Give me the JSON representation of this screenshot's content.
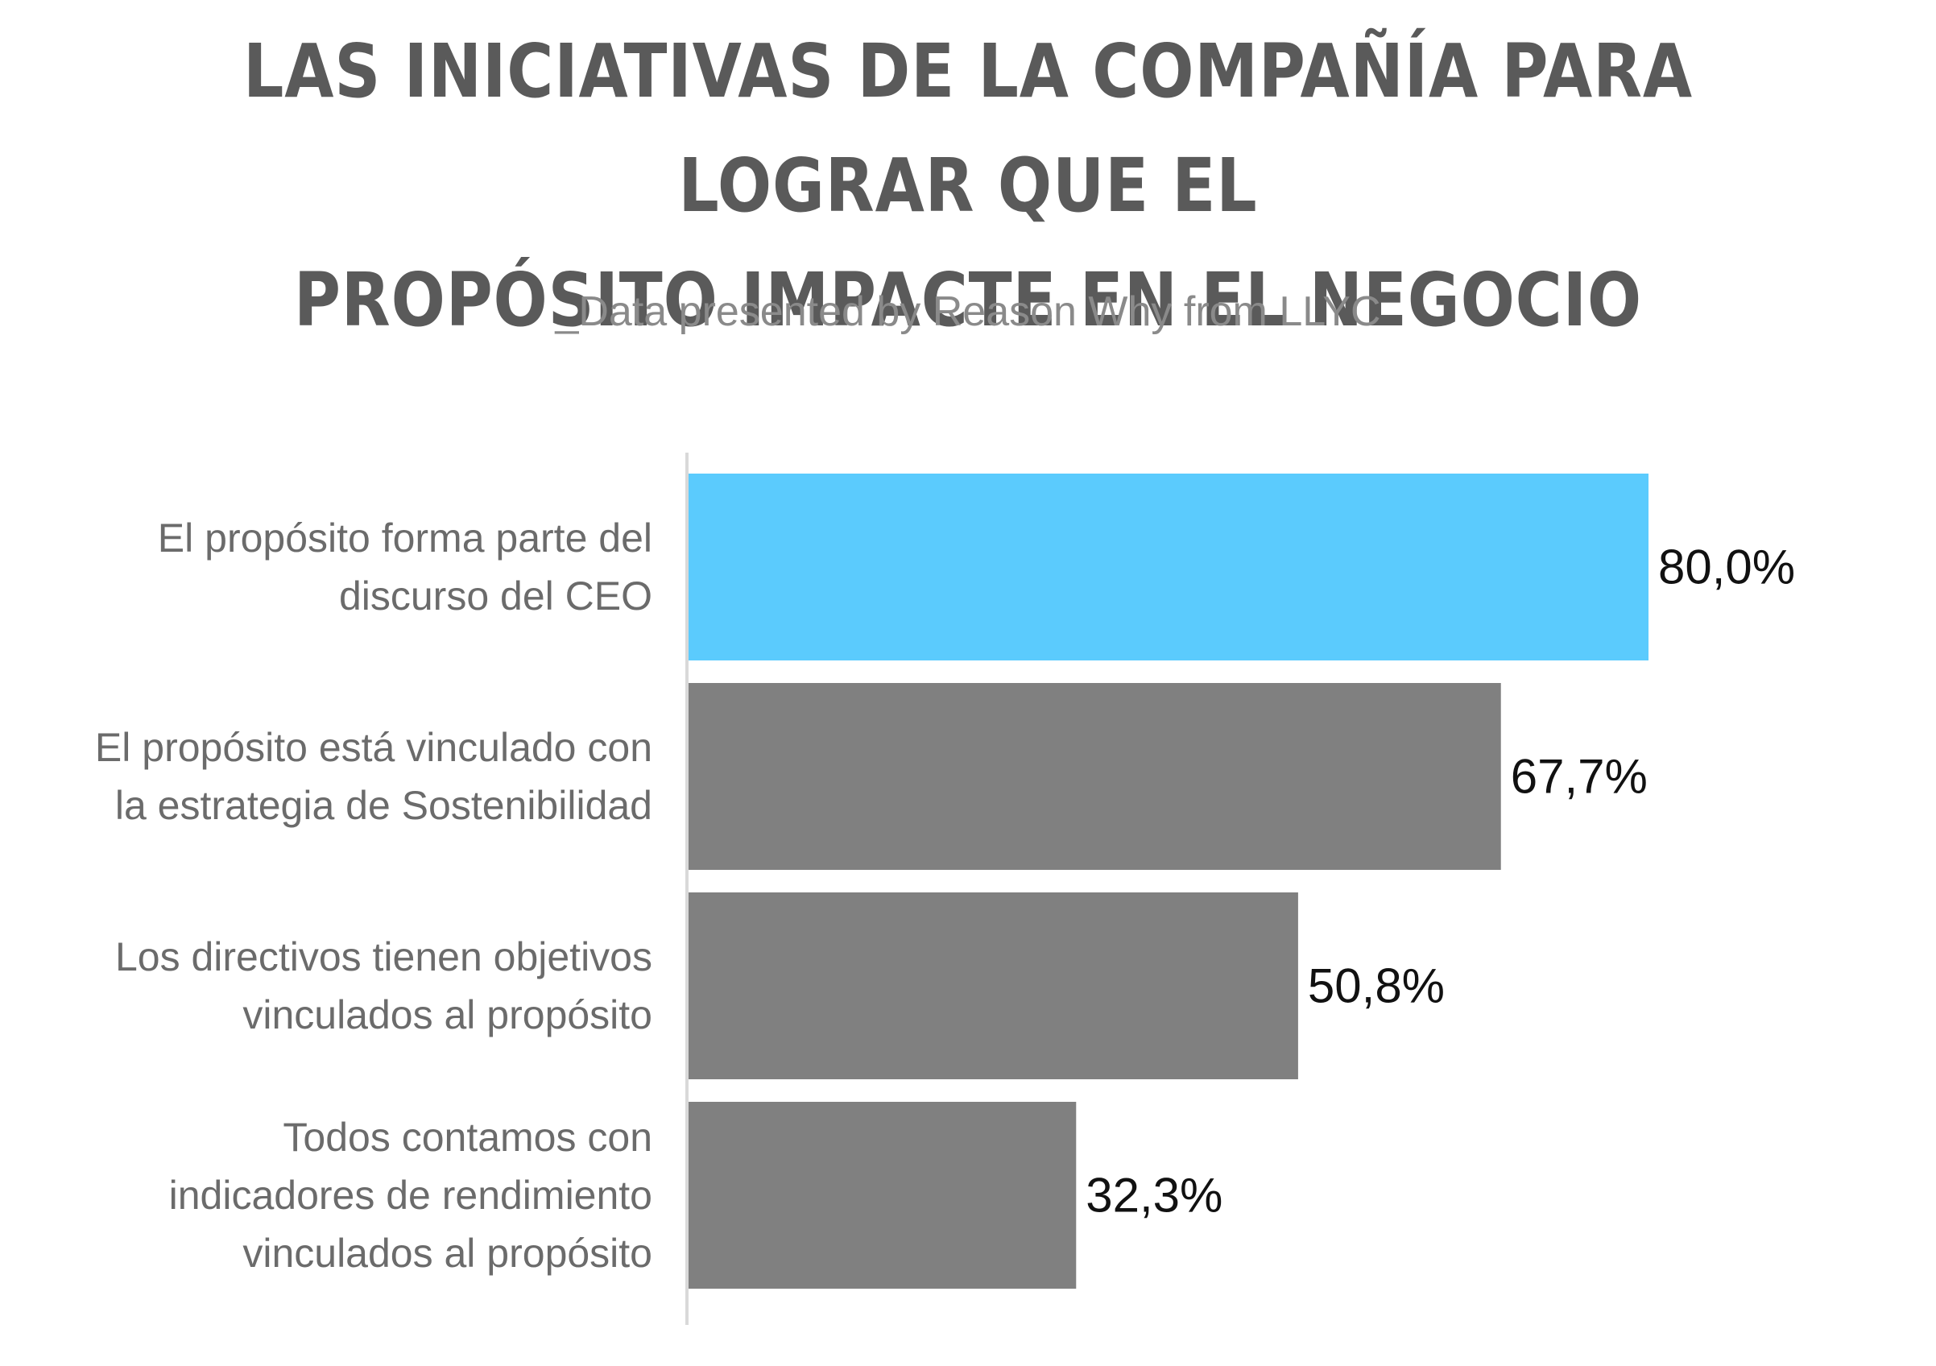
{
  "title_lines": [
    "LAS INICIATIVAS DE LA COMPAÑÍA PARA LOGRAR QUE EL",
    "PROPÓSITO IMPACTE EN EL NEGOCIO"
  ],
  "subtitle": "_Data presented by Reason Why from LLYC",
  "chart_data": {
    "type": "bar",
    "orientation": "horizontal",
    "title": "LAS INICIATIVAS DE LA COMPAÑÍA PARA LOGRAR QUE EL PROPÓSITO IMPACTE EN EL NEGOCIO",
    "subtitle": "_Data presented by Reason Why from LLYC",
    "categories": [
      [
        "El propósito forma parte del",
        "discurso del CEO"
      ],
      [
        "El propósito está vinculado con",
        "la estrategia de Sostenibilidad"
      ],
      [
        "Los directivos tienen objetivos",
        "vinculados al propósito"
      ],
      [
        "Todos contamos con",
        "indicadores de rendimiento",
        "vinculados al propósito"
      ]
    ],
    "values": [
      80.0,
      67.7,
      50.8,
      32.3
    ],
    "value_labels": [
      "80,0%",
      "67,7%",
      "50,8%",
      "32,3%"
    ],
    "bar_colors": [
      "#5bcbfd",
      "#808080",
      "#808080",
      "#808080"
    ],
    "xlim": [
      0,
      100
    ],
    "grid": false,
    "legend": "none"
  },
  "colors": {
    "highlight": "#5bcbfd",
    "bar": "#808080",
    "axis": "#d9d9d9",
    "title": "#5a5a5a",
    "subtitle": "#8a8a8a"
  }
}
